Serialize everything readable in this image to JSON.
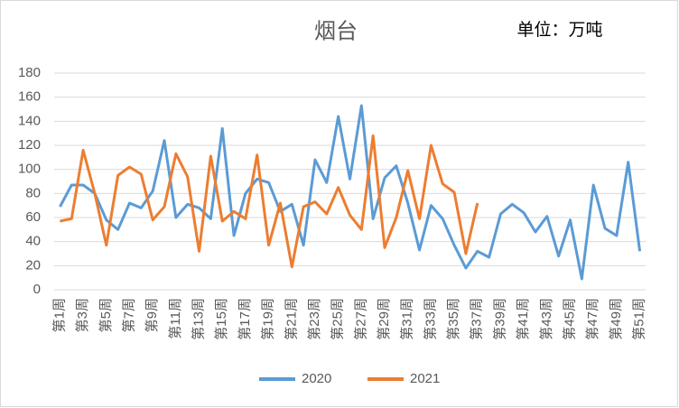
{
  "chart_data": {
    "type": "line",
    "title": "烟台",
    "unit": "单位：万吨",
    "categories": [
      "第1周",
      null,
      "第3周",
      null,
      "第5周",
      null,
      "第7周",
      null,
      "第9周",
      null,
      "第11周",
      null,
      "第13周",
      null,
      "第15周",
      null,
      "第17周",
      null,
      "第19周",
      null,
      "第21周",
      null,
      "第23周",
      null,
      "第25周",
      null,
      "第27周",
      null,
      "第29周",
      null,
      "第31周",
      null,
      "第33周",
      null,
      "第35周",
      null,
      "第37周",
      null,
      "第39周",
      null,
      "第41周",
      null,
      "第43周",
      null,
      "第45周",
      null,
      "第47周",
      null,
      "第49周",
      null,
      "第51周"
    ],
    "series": [
      {
        "name": "2020",
        "color": "#5b9bd5",
        "values": [
          69,
          87,
          87,
          80,
          58,
          50,
          72,
          68,
          82,
          124,
          60,
          71,
          68,
          59,
          134,
          45,
          80,
          92,
          89,
          65,
          71,
          37,
          108,
          89,
          144,
          92,
          153,
          59,
          93,
          103,
          72,
          33,
          70,
          59,
          37,
          18,
          32,
          27,
          63,
          71,
          64,
          48,
          61,
          28,
          58,
          9,
          87,
          51,
          45,
          106,
          32
        ]
      },
      {
        "name": "2021",
        "color": "#ed7d31",
        "values": [
          57,
          59,
          116,
          80,
          37,
          95,
          102,
          96,
          58,
          69,
          113,
          94,
          32,
          111,
          57,
          65,
          59,
          112,
          37,
          72,
          19,
          69,
          73,
          63,
          85,
          62,
          50,
          128,
          35,
          60,
          99,
          59,
          120,
          88,
          81,
          30,
          72,
          null,
          null,
          null,
          null,
          null,
          null,
          null,
          null,
          null,
          null,
          null,
          null,
          null,
          null
        ]
      }
    ],
    "ylim": [
      0,
      180
    ],
    "yticks": [
      0,
      20,
      40,
      60,
      80,
      100,
      120,
      140,
      160,
      180
    ],
    "grid": true,
    "legend": "bottom"
  }
}
